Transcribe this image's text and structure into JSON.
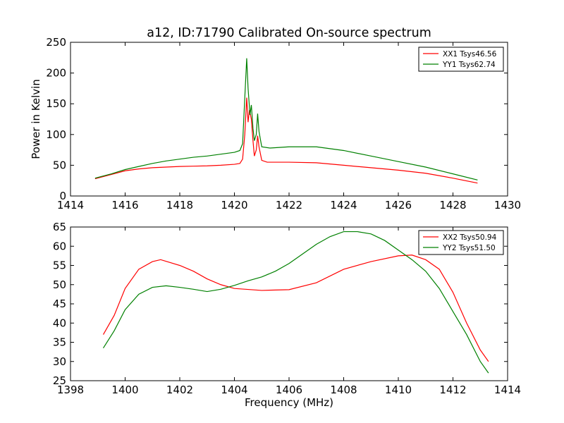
{
  "chart_data": [
    {
      "type": "line",
      "title": "a12, ID:71790 Calibrated On-source spectrum",
      "xlabel": "",
      "ylabel": "Power in Kelvin",
      "xlim": [
        1414,
        1430
      ],
      "ylim": [
        0,
        250
      ],
      "xticks": [
        1414,
        1416,
        1418,
        1420,
        1422,
        1424,
        1426,
        1428,
        1430
      ],
      "yticks": [
        0,
        50,
        100,
        150,
        200,
        250
      ],
      "legend_position": "top-right",
      "grid": false,
      "series": [
        {
          "name": "XX1 Tsys46.56",
          "color": "#ff0000",
          "points": [
            [
              1414.9,
              28
            ],
            [
              1415.5,
              35
            ],
            [
              1416,
              41
            ],
            [
              1416.5,
              44
            ],
            [
              1417,
              46
            ],
            [
              1417.5,
              47
            ],
            [
              1418,
              48
            ],
            [
              1418.5,
              48.5
            ],
            [
              1419,
              49
            ],
            [
              1419.5,
              50
            ],
            [
              1420,
              51.5
            ],
            [
              1420.2,
              53
            ],
            [
              1420.3,
              60
            ],
            [
              1420.38,
              100
            ],
            [
              1420.45,
              160
            ],
            [
              1420.5,
              120
            ],
            [
              1420.55,
              140
            ],
            [
              1420.62,
              125
            ],
            [
              1420.68,
              90
            ],
            [
              1420.73,
              65
            ],
            [
              1420.8,
              75
            ],
            [
              1420.85,
              98
            ],
            [
              1420.9,
              80
            ],
            [
              1421,
              58
            ],
            [
              1421.2,
              55
            ],
            [
              1422,
              55
            ],
            [
              1423,
              54
            ],
            [
              1424,
              50
            ],
            [
              1425,
              46
            ],
            [
              1426,
              42
            ],
            [
              1427,
              37
            ],
            [
              1428,
              29
            ],
            [
              1428.9,
              21
            ]
          ]
        },
        {
          "name": "YY1 Tsys62.74",
          "color": "#008000",
          "points": [
            [
              1414.9,
              29
            ],
            [
              1415.5,
              36
            ],
            [
              1416,
              43
            ],
            [
              1416.5,
              48
            ],
            [
              1417,
              53
            ],
            [
              1417.5,
              57
            ],
            [
              1418,
              60
            ],
            [
              1418.5,
              63
            ],
            [
              1419,
              65
            ],
            [
              1419.5,
              68
            ],
            [
              1420,
              71
            ],
            [
              1420.2,
              74
            ],
            [
              1420.3,
              85
            ],
            [
              1420.38,
              160
            ],
            [
              1420.45,
              224
            ],
            [
              1420.5,
              175
            ],
            [
              1420.57,
              132
            ],
            [
              1420.62,
              148
            ],
            [
              1420.68,
              110
            ],
            [
              1420.73,
              90
            ],
            [
              1420.8,
              100
            ],
            [
              1420.85,
              134
            ],
            [
              1420.9,
              105
            ],
            [
              1421,
              80
            ],
            [
              1421.3,
              78
            ],
            [
              1422,
              80
            ],
            [
              1423,
              80
            ],
            [
              1424,
              74
            ],
            [
              1425,
              65
            ],
            [
              1426,
              56
            ],
            [
              1427,
              47
            ],
            [
              1428,
              36
            ],
            [
              1428.9,
              26
            ]
          ]
        }
      ]
    },
    {
      "type": "line",
      "title": "",
      "xlabel": "Frequency (MHz)",
      "ylabel": "",
      "xlim": [
        1398,
        1414
      ],
      "ylim": [
        25,
        65
      ],
      "xticks": [
        1398,
        1400,
        1402,
        1404,
        1406,
        1408,
        1410,
        1412,
        1414
      ],
      "yticks": [
        25,
        30,
        35,
        40,
        45,
        50,
        55,
        60,
        65
      ],
      "legend_position": "top-right",
      "grid": false,
      "series": [
        {
          "name": "XX2 Tsys50.94",
          "color": "#ff0000",
          "points": [
            [
              1399.2,
              37
            ],
            [
              1399.6,
              42
            ],
            [
              1400,
              49
            ],
            [
              1400.5,
              54
            ],
            [
              1401,
              56
            ],
            [
              1401.3,
              56.5
            ],
            [
              1402,
              55
            ],
            [
              1402.5,
              53.5
            ],
            [
              1403,
              51.5
            ],
            [
              1403.5,
              50
            ],
            [
              1404,
              49
            ],
            [
              1405,
              48.5
            ],
            [
              1406,
              48.7
            ],
            [
              1407,
              50.5
            ],
            [
              1408,
              54
            ],
            [
              1409,
              56
            ],
            [
              1410,
              57.5
            ],
            [
              1410.5,
              57.7
            ],
            [
              1411,
              56.5
            ],
            [
              1411.5,
              54
            ],
            [
              1412,
              48
            ],
            [
              1412.5,
              40
            ],
            [
              1413,
              33
            ],
            [
              1413.3,
              30
            ]
          ]
        },
        {
          "name": "YY2 Tsys51.50",
          "color": "#008000",
          "points": [
            [
              1399.2,
              33.5
            ],
            [
              1399.6,
              38
            ],
            [
              1400,
              43.5
            ],
            [
              1400.5,
              47.5
            ],
            [
              1401,
              49.3
            ],
            [
              1401.5,
              49.7
            ],
            [
              1402,
              49.3
            ],
            [
              1402.5,
              48.8
            ],
            [
              1403,
              48.2
            ],
            [
              1403.5,
              48.8
            ],
            [
              1404,
              49.8
            ],
            [
              1404.5,
              51
            ],
            [
              1405,
              52
            ],
            [
              1405.5,
              53.5
            ],
            [
              1406,
              55.5
            ],
            [
              1406.5,
              58
            ],
            [
              1407,
              60.5
            ],
            [
              1407.5,
              62.5
            ],
            [
              1408,
              63.8
            ],
            [
              1408.5,
              63.8
            ],
            [
              1409,
              63.2
            ],
            [
              1409.5,
              61.5
            ],
            [
              1410,
              59
            ],
            [
              1410.5,
              56.5
            ],
            [
              1411,
              53.5
            ],
            [
              1411.5,
              49
            ],
            [
              1412,
              43
            ],
            [
              1412.5,
              37
            ],
            [
              1413,
              30
            ],
            [
              1413.3,
              27
            ]
          ]
        }
      ]
    }
  ]
}
